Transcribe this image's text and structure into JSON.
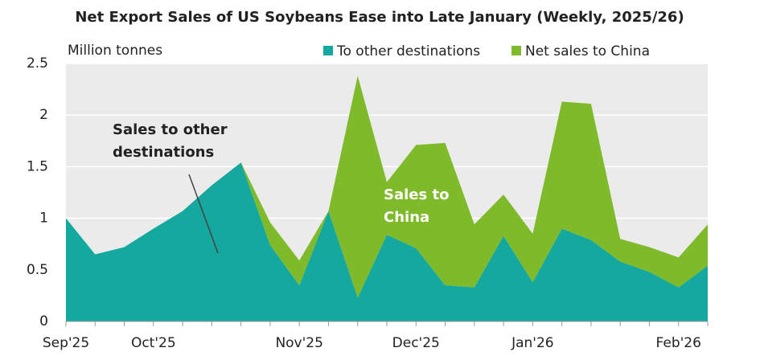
{
  "chart_data": {
    "type": "stacked_area",
    "title": "Net Export Sales of US Soybeans Ease into Late January (Weekly, 2025/26)",
    "y_label": "Million  tonnes",
    "categories": [
      "Sep'25",
      null,
      null,
      "Oct'25",
      null,
      null,
      null,
      null,
      "Nov'25",
      null,
      null,
      null,
      "Dec'25",
      null,
      null,
      null,
      "Jan'26",
      null,
      null,
      null,
      null,
      "Feb'26",
      null
    ],
    "series": [
      {
        "name": "To other destinations",
        "color": "#14a89e",
        "values": [
          1.0,
          0.65,
          0.72,
          0.9,
          1.07,
          1.32,
          1.54,
          0.74,
          0.35,
          1.07,
          0.23,
          0.84,
          0.71,
          0.35,
          0.33,
          0.83,
          0.38,
          0.9,
          0.79,
          0.58,
          0.48,
          0.33,
          0.54
        ]
      },
      {
        "name": "Net sales to China",
        "color": "#7fba2a",
        "values": [
          0,
          0,
          0,
          0,
          0,
          0,
          0,
          0.22,
          0.24,
          0,
          2.15,
          0.51,
          1.0,
          1.38,
          0.61,
          0.4,
          0.47,
          1.23,
          1.32,
          0.22,
          0.24,
          0.29,
          0.4
        ]
      }
    ],
    "ylim": [
      0,
      2.5
    ],
    "yticks": [
      0,
      0.5,
      1,
      1.5,
      2,
      2.5
    ],
    "grid": true,
    "annotations": [
      [
        "Sales to other",
        "destinations"
      ],
      [
        "Sales to",
        "China"
      ]
    ]
  }
}
